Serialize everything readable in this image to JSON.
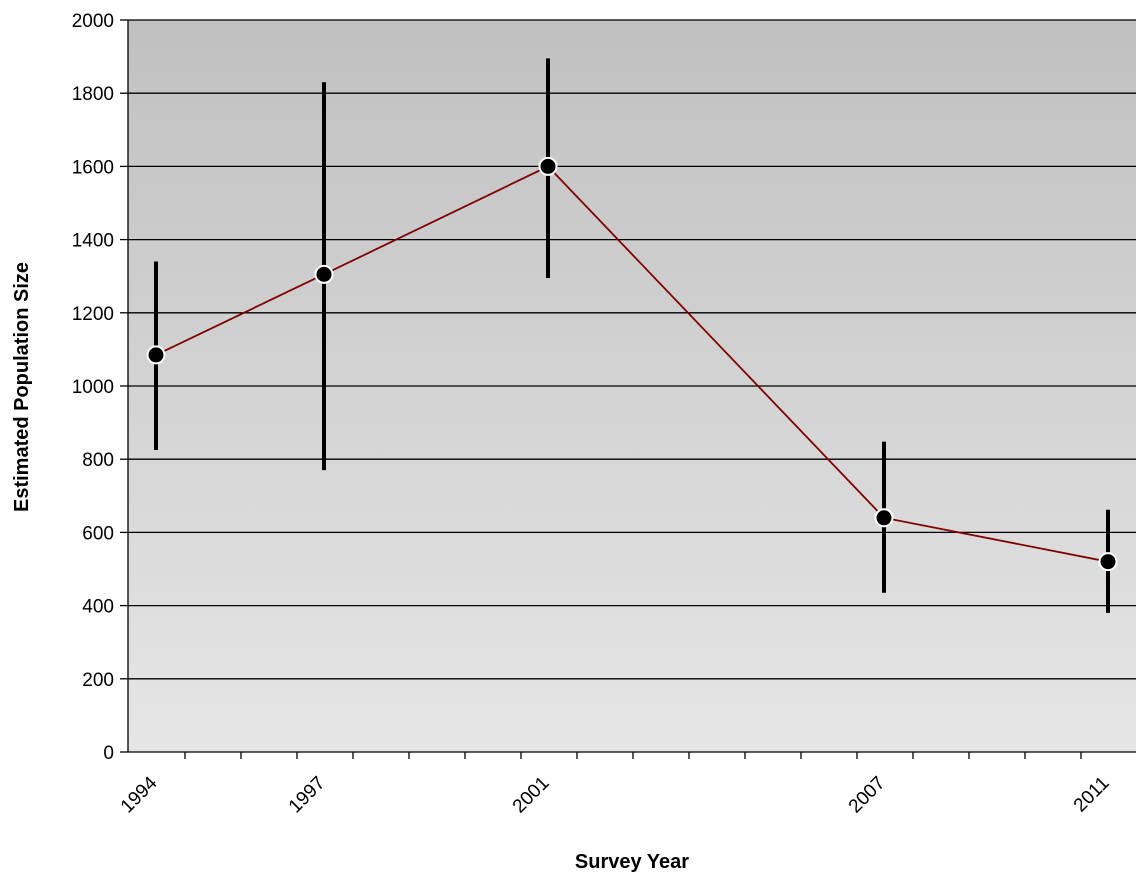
{
  "chart_data": {
    "type": "line",
    "title": "",
    "xlabel": "Survey Year",
    "ylabel": "Estimated Population Size",
    "xlim": [
      1993.5,
      2011.5
    ],
    "ylim": [
      0,
      2000
    ],
    "y_ticks": [
      0,
      200,
      400,
      600,
      800,
      1000,
      1200,
      1400,
      1600,
      1800,
      2000
    ],
    "x_tick_labels": [
      {
        "label": "1994",
        "value": 1994
      },
      {
        "label": "1997",
        "value": 1997
      },
      {
        "label": "2001",
        "value": 2001
      },
      {
        "label": "2007",
        "value": 2007
      },
      {
        "label": "2011",
        "value": 2011
      }
    ],
    "x_minor_ticks_every": 1,
    "grid": "horizontal",
    "legend": "none",
    "series": [
      {
        "x": [
          1994,
          1997,
          2001,
          2007,
          2011
        ],
        "values": [
          1085,
          1305,
          1600,
          640,
          520
        ],
        "error_low": [
          825,
          770,
          1295,
          435,
          380
        ],
        "error_high": [
          1340,
          1830,
          1895,
          848,
          662
        ],
        "line_color": "#800000",
        "marker_color": "#000000"
      }
    ],
    "colors": {
      "plot_bg_top": "#c0c0c0",
      "plot_bg_bottom": "#e6e6e6",
      "gridline": "#000000",
      "error_bar": "#000000"
    }
  }
}
